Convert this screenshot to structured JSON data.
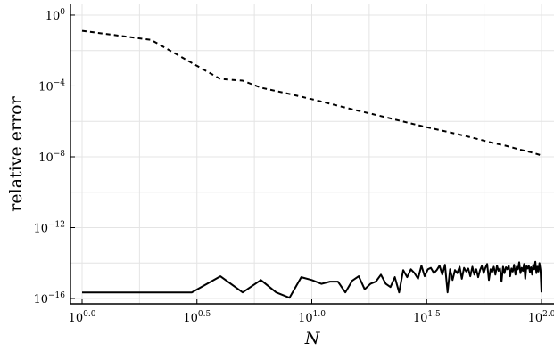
{
  "chart_data": {
    "type": "line",
    "xlabel": "N",
    "ylabel": "relative error",
    "x_scale": "log10",
    "y_scale": "log10",
    "xlim": [
      1,
      100
    ],
    "ylim": [
      5e-17,
      4
    ],
    "grid": true,
    "x_ticks": [
      {
        "value": 1,
        "base": "10",
        "exp": "0.0"
      },
      {
        "value": 3.1623,
        "base": "10",
        "exp": "0.5"
      },
      {
        "value": 10,
        "base": "10",
        "exp": "1.0"
      },
      {
        "value": 31.623,
        "base": "10",
        "exp": "1.5"
      },
      {
        "value": 100,
        "base": "10",
        "exp": "2.0"
      }
    ],
    "y_ticks": [
      {
        "value": 1,
        "base": "10",
        "exp": "0"
      },
      {
        "value": 0.0001,
        "base": "10",
        "exp": "−4"
      },
      {
        "value": 1e-08,
        "base": "10",
        "exp": "−8"
      },
      {
        "value": 1e-12,
        "base": "10",
        "exp": "−12"
      },
      {
        "value": 1e-16,
        "base": "10",
        "exp": "−16"
      }
    ],
    "series": [
      {
        "style": "dashed",
        "color": "#000000",
        "x": [
          1,
          2,
          3,
          4,
          5,
          6,
          8,
          10,
          15,
          20,
          30,
          40,
          50,
          60,
          70,
          80,
          90,
          100
        ],
        "y": [
          0.13,
          0.04,
          0.002,
          0.00025,
          0.0002,
          8e-05,
          3.5e-05,
          1.8e-05,
          4.8e-06,
          2e-06,
          5.5e-07,
          2.4e-07,
          1.2e-07,
          6.5e-08,
          4.2e-08,
          2.6e-08,
          1.8e-08,
          1.2e-08
        ]
      },
      {
        "style": "solid",
        "color": "#000000",
        "x": [
          1,
          2,
          3,
          4,
          5,
          6,
          7,
          8,
          9,
          10,
          11,
          12,
          13,
          14,
          15,
          16,
          17,
          18,
          19,
          20,
          21,
          22,
          23,
          24,
          25,
          26,
          27,
          28,
          29,
          30,
          31,
          32,
          33,
          34,
          35,
          36,
          37,
          38,
          39,
          40,
          41,
          42,
          43,
          44,
          45,
          46,
          47,
          48,
          49,
          50,
          51,
          52,
          53,
          54,
          55,
          56,
          57,
          58,
          59,
          60,
          61,
          62,
          63,
          64,
          65,
          66,
          67,
          68,
          69,
          70,
          71,
          72,
          73,
          74,
          75,
          76,
          77,
          78,
          79,
          80,
          81,
          82,
          83,
          84,
          85,
          86,
          87,
          88,
          89,
          90,
          91,
          92,
          93,
          94,
          95,
          96,
          97,
          98,
          99,
          100
        ],
        "y": [
          2.2e-16,
          2.2e-16,
          2.2e-16,
          1.8e-15,
          2.2e-16,
          1.1e-15,
          2.2e-16,
          1.1e-16,
          1.6e-15,
          1.1e-15,
          6.7e-16,
          8.9e-16,
          8.9e-16,
          2.2e-16,
          1e-15,
          1.8e-15,
          3.3e-16,
          6.7e-16,
          8.9e-16,
          2.2e-15,
          6.7e-16,
          4.4e-16,
          1.6e-15,
          2.2e-16,
          4e-15,
          1.6e-15,
          4.4e-15,
          2.7e-15,
          1.3e-15,
          7.1e-15,
          1.8e-15,
          4.4e-15,
          5.3e-15,
          2.7e-15,
          4e-15,
          7.1e-15,
          2.2e-15,
          8e-15,
          2.2e-16,
          4.4e-15,
          1.1e-15,
          4e-15,
          2.7e-15,
          6.2e-15,
          1.3e-15,
          5.3e-15,
          3.3e-15,
          4.9e-15,
          1.8e-15,
          6.2e-15,
          2.2e-15,
          4.4e-15,
          1.6e-15,
          4e-15,
          6.7e-15,
          2.7e-15,
          5.3e-15,
          8.9e-15,
          1.1e-15,
          4.4e-15,
          3.1e-15,
          6.2e-15,
          2.2e-15,
          7.1e-15,
          3.6e-15,
          4.9e-15,
          8.9e-16,
          6.2e-15,
          2.7e-15,
          5.8e-15,
          4.4e-15,
          7.1e-15,
          1.8e-15,
          4.9e-15,
          3.3e-15,
          8e-15,
          2.2e-15,
          6.2e-15,
          4.4e-15,
          1.1e-14,
          2.7e-15,
          5.3e-15,
          3.6e-15,
          8.9e-15,
          1.3e-15,
          6.7e-15,
          4.9e-15,
          7.1e-15,
          3.1e-15,
          5.8e-15,
          2.2e-15,
          8e-15,
          4.4e-15,
          1.2e-14,
          2.7e-15,
          6.2e-15,
          3.3e-15,
          9.8e-15,
          4e-15,
          2.2e-16
        ]
      }
    ]
  }
}
